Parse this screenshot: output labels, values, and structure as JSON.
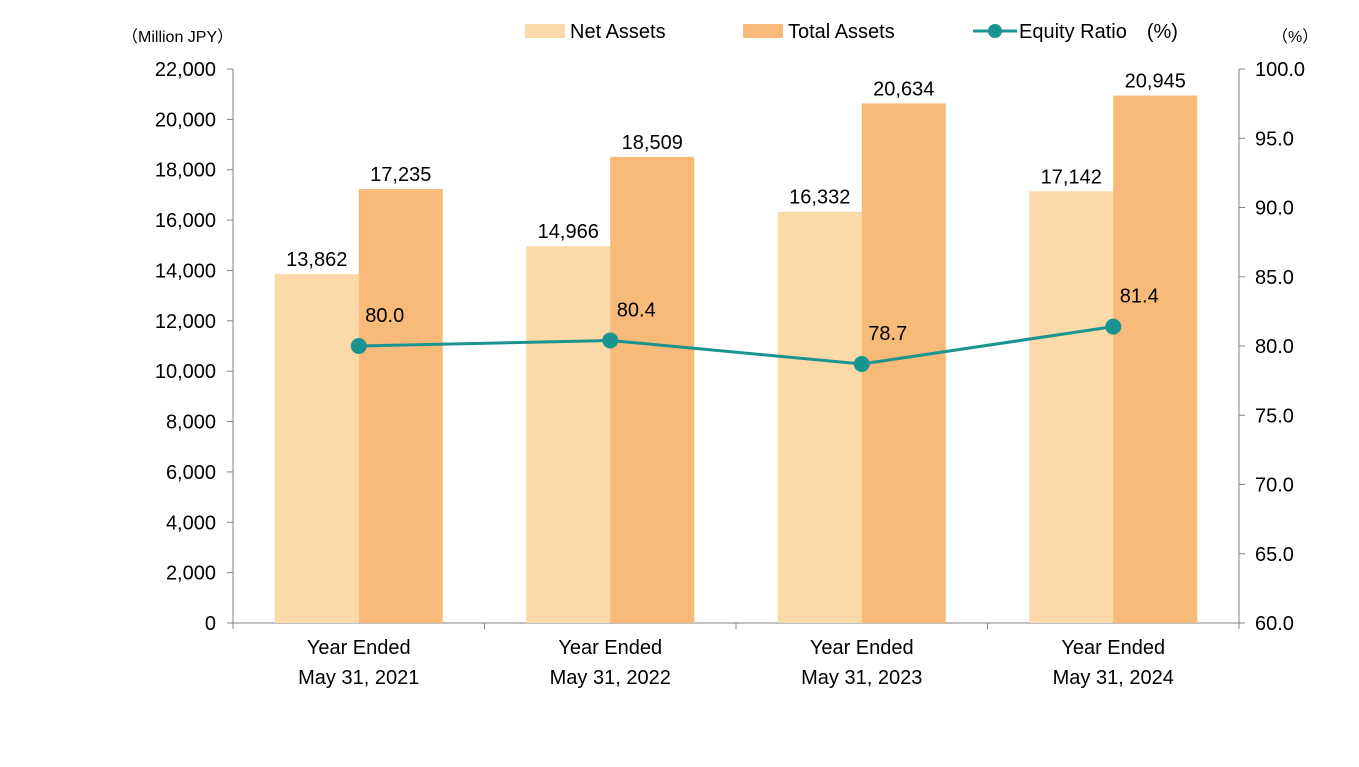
{
  "chart_data": {
    "type": "bar",
    "categories": [
      [
        "Year Ended",
        "May 31, 2021"
      ],
      [
        "Year Ended",
        "May 31, 2022"
      ],
      [
        "Year Ended",
        "May 31, 2023"
      ],
      [
        "Year Ended",
        "May 31, 2024"
      ]
    ],
    "series": [
      {
        "name": "Net Assets",
        "type": "bar",
        "axis": "left",
        "color": "#FCD9A8",
        "values": [
          13862,
          14966,
          16332,
          17142
        ],
        "labels": [
          "13,862",
          "14,966",
          "16,332",
          "17,142"
        ]
      },
      {
        "name": "Total Assets",
        "type": "bar",
        "axis": "left",
        "color": "#F8BA78",
        "values": [
          17235,
          18509,
          20634,
          20945
        ],
        "labels": [
          "17,235",
          "18,509",
          "20,634",
          "20,945"
        ]
      },
      {
        "name": "Equity Ratio　(%)",
        "type": "line",
        "axis": "right",
        "color": "#1A9490",
        "values": [
          80.0,
          80.4,
          78.7,
          81.4
        ],
        "labels": [
          "80.0",
          "80.4",
          "78.7",
          "81.4"
        ]
      }
    ],
    "y_left": {
      "unit_label": "（Million JPY）",
      "min": 0,
      "max": 22000,
      "ticks": [
        "0",
        "2,000",
        "4,000",
        "6,000",
        "8,000",
        "10,000",
        "12,000",
        "14,000",
        "16,000",
        "18,000",
        "20,000",
        "22,000"
      ]
    },
    "y_right": {
      "unit_label": "（%）",
      "min": 60,
      "max": 100,
      "ticks": [
        "60.0",
        "65.0",
        "70.0",
        "75.0",
        "80.0",
        "85.0",
        "90.0",
        "95.0",
        "100.0"
      ]
    },
    "grid": false,
    "legend_position": "top"
  }
}
